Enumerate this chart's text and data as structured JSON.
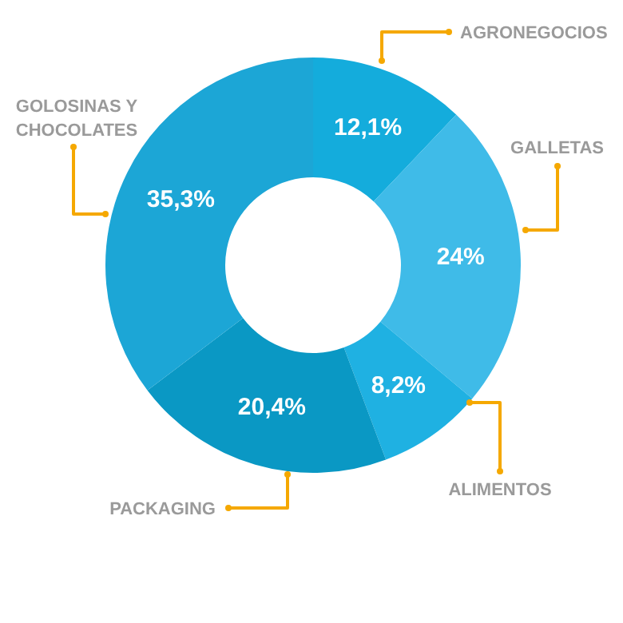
{
  "chart_data": {
    "type": "donut",
    "categories": [
      "AGRONEGOCIOS",
      "GALLETAS",
      "ALIMENTOS",
      "PACKAGING",
      "GOLOSINAS Y CHOCOLATES"
    ],
    "values": [
      12.1,
      24,
      8.2,
      20.4,
      35.3
    ],
    "colors": [
      "#14acdc",
      "#3fbbe8",
      "#1fb1e2",
      "#0a98c4",
      "#1ca6d6"
    ],
    "value_labels": [
      "12,1%",
      "24%",
      "8,2%",
      "20,4%",
      "35,3%"
    ]
  }
}
